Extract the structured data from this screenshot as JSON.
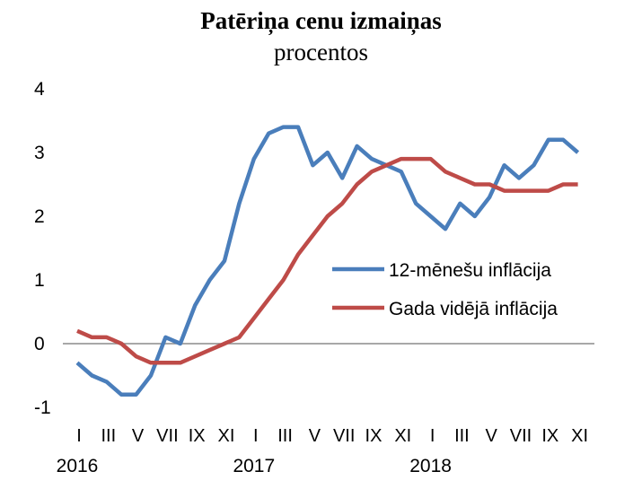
{
  "chart_data": {
    "type": "line",
    "title": "Patēriņa cenu izmaiņas",
    "subtitle": "procentos",
    "ylim": [
      -1,
      4
    ],
    "y_ticks": [
      -1,
      0,
      1,
      2,
      3,
      4
    ],
    "y_tick_labels": [
      "-1",
      "0",
      "1",
      "2",
      "3",
      "4"
    ],
    "grid": false,
    "zero_line": true,
    "legend_position": "center-right",
    "x_month_labels": [
      "I",
      "III",
      "V",
      "VII",
      "IX",
      "XI",
      "I",
      "III",
      "V",
      "VII",
      "IX",
      "XI",
      "I",
      "III",
      "V",
      "VII",
      "IX",
      "XI"
    ],
    "x_month_label_index": [
      0,
      2,
      4,
      6,
      8,
      10,
      12,
      14,
      16,
      18,
      20,
      22,
      24,
      26,
      28,
      30,
      32,
      34
    ],
    "x_year_labels": [
      "2016",
      "2017",
      "2018"
    ],
    "x_year_label_index": [
      0,
      12,
      24
    ],
    "series": [
      {
        "name": "12-mēnešu inflācija",
        "color": "#4a7ebb",
        "values": [
          -0.3,
          -0.5,
          -0.6,
          -0.8,
          -0.8,
          -0.5,
          0.1,
          0.0,
          0.6,
          1.0,
          1.3,
          2.2,
          2.9,
          3.3,
          3.4,
          3.4,
          2.8,
          3.0,
          2.6,
          3.1,
          2.9,
          2.8,
          2.7,
          2.2,
          2.0,
          1.8,
          2.2,
          2.0,
          2.3,
          2.8,
          2.6,
          2.8,
          3.2,
          3.2,
          3.0
        ]
      },
      {
        "name": "Gada vidējā inflācija",
        "color": "#be4b48",
        "values": [
          0.2,
          0.1,
          0.1,
          0.0,
          -0.2,
          -0.3,
          -0.3,
          -0.3,
          -0.2,
          -0.1,
          0.0,
          0.1,
          0.4,
          0.7,
          1.0,
          1.4,
          1.7,
          2.0,
          2.2,
          2.5,
          2.7,
          2.8,
          2.9,
          2.9,
          2.9,
          2.7,
          2.6,
          2.5,
          2.5,
          2.4,
          2.4,
          2.4,
          2.4,
          2.5,
          2.5
        ]
      }
    ]
  }
}
